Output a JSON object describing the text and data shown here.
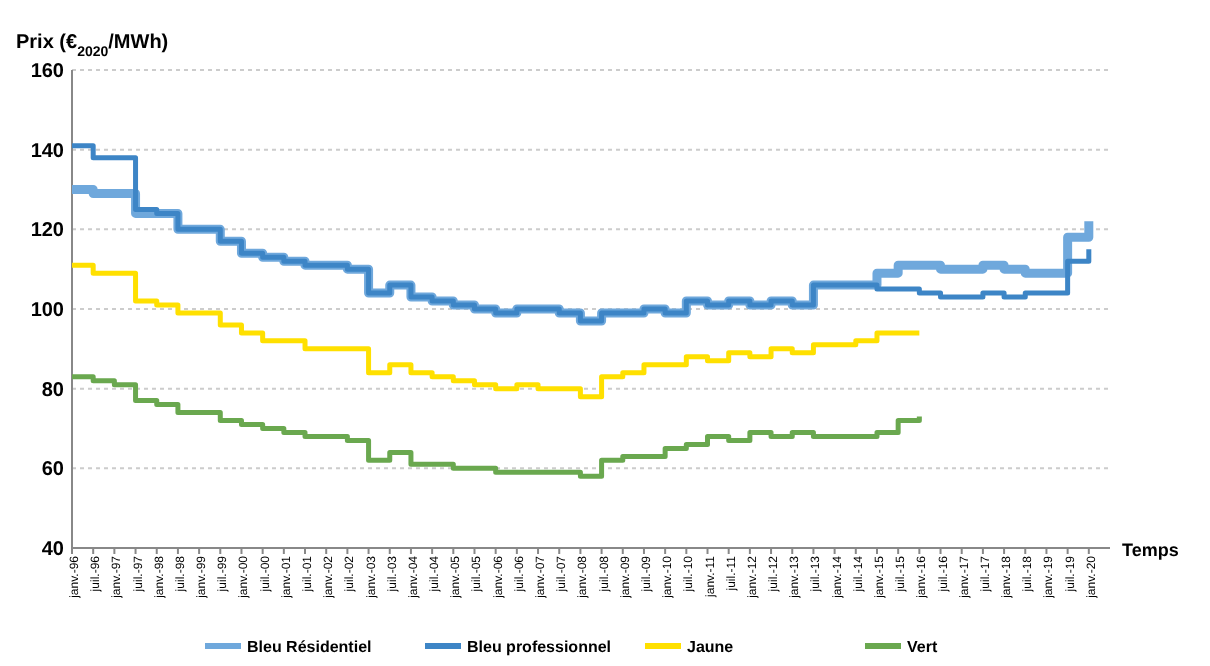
{
  "chart_data": {
    "type": "step",
    "ylabel": "Prix (€$_{2020}$/MWh)",
    "xlabel": "Temps",
    "categories": [
      "janv.-96",
      "juil.-96",
      "janv.-97",
      "juil.-97",
      "janv.-98",
      "juil.-98",
      "janv.-99",
      "juil.-99",
      "janv.-00",
      "juil.-00",
      "janv.-01",
      "juil.-01",
      "janv.-02",
      "juil.-02",
      "janv.-03",
      "juil.-03",
      "janv.-04",
      "juil.-04",
      "janv.-05",
      "juil.-05",
      "janv.-06",
      "juil.-06",
      "janv.-07",
      "juil.-07",
      "janv.-08",
      "juil.-08",
      "janv.-09",
      "juil.-09",
      "janv.-10",
      "juil.-10",
      "janv.-11",
      "juil.-11",
      "janv.-12",
      "juil.-12",
      "janv.-13",
      "juil.-13",
      "janv.-14",
      "juil.-14",
      "janv.-15",
      "juil.-15",
      "janv.-16",
      "juil.-16",
      "janv.-17",
      "juil.-17",
      "janv.-18",
      "juil.-18",
      "janv.-19",
      "juil.-19",
      "janv.-20"
    ],
    "series": [
      {
        "name": "Bleu Résidentiel",
        "color": "#6fa8dc",
        "values": [
          130,
          129,
          129,
          124,
          124,
          120,
          120,
          117,
          114,
          113,
          112,
          111,
          111,
          110,
          104,
          106,
          103,
          102,
          101,
          100,
          99,
          100,
          100,
          99,
          97,
          99,
          99,
          100,
          99,
          102,
          101,
          102,
          101,
          102,
          101,
          106,
          106,
          106,
          109,
          111,
          111,
          110,
          110,
          111,
          110,
          109,
          109,
          118,
          122
        ]
      },
      {
        "name": "Bleu professionnel",
        "color": "#3d85c6",
        "values": [
          141,
          138,
          138,
          125,
          124,
          120,
          120,
          117,
          114,
          113,
          112,
          111,
          111,
          110,
          104,
          106,
          103,
          102,
          101,
          100,
          99,
          100,
          100,
          99,
          97,
          99,
          99,
          100,
          99,
          102,
          101,
          102,
          101,
          102,
          101,
          106,
          106,
          106,
          105,
          105,
          104,
          103,
          103,
          104,
          103,
          104,
          104,
          112,
          115
        ]
      },
      {
        "name": "Jaune",
        "color": "#ffe000",
        "values": [
          111,
          109,
          109,
          102,
          101,
          99,
          99,
          96,
          94,
          92,
          92,
          90,
          90,
          90,
          84,
          86,
          84,
          83,
          82,
          81,
          80,
          81,
          80,
          80,
          78,
          83,
          84,
          86,
          86,
          88,
          87,
          89,
          88,
          90,
          89,
          91,
          91,
          92,
          94,
          94,
          94,
          null,
          null,
          null,
          null,
          null,
          null,
          null,
          null
        ]
      },
      {
        "name": "Vert",
        "color": "#6aa84f",
        "values": [
          83,
          82,
          81,
          77,
          76,
          74,
          74,
          72,
          71,
          70,
          69,
          68,
          68,
          67,
          62,
          64,
          61,
          61,
          60,
          60,
          59,
          59,
          59,
          59,
          58,
          62,
          63,
          63,
          65,
          66,
          68,
          67,
          69,
          68,
          69,
          68,
          68,
          68,
          69,
          72,
          73,
          null,
          null,
          null,
          null,
          null,
          null,
          null,
          null
        ]
      }
    ],
    "ylim": [
      40,
      160
    ],
    "yticks": [
      40,
      60,
      80,
      100,
      120,
      140,
      160
    ],
    "grid": "y",
    "legend": "bottom",
    "line_style": "solid"
  }
}
